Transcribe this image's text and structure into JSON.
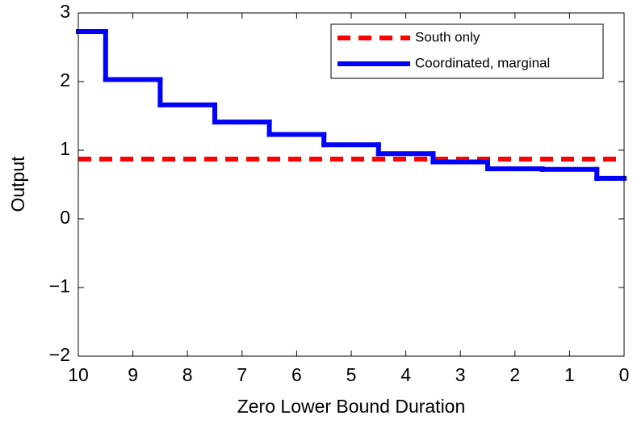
{
  "chart_data": {
    "type": "step-line",
    "x_label": "Zero Lower Bound Duration",
    "y_label": "Output",
    "x": [
      10,
      9,
      8,
      7,
      6,
      5,
      4,
      3,
      2,
      1,
      0
    ],
    "series": [
      {
        "name": "South only",
        "color": "#ff0000",
        "style": "dashed",
        "values": [
          0.87,
          0.87,
          0.87,
          0.87,
          0.87,
          0.87,
          0.87,
          0.87,
          0.87,
          0.87,
          0.87
        ]
      },
      {
        "name": "Coordinated, marginal",
        "color": "#0000ff",
        "style": "steps",
        "values": [
          2.73,
          2.03,
          1.66,
          1.41,
          1.23,
          1.08,
          0.95,
          0.83,
          0.73,
          0.72,
          0.59
        ]
      }
    ],
    "xlim": [
      10,
      0
    ],
    "xticks": [
      10,
      9,
      8,
      7,
      6,
      5,
      4,
      3,
      2,
      1,
      0
    ],
    "ylim": [
      -2,
      3
    ],
    "yticks": [
      {
        "value": -2,
        "label": "−2"
      },
      {
        "value": -1,
        "label": "−1"
      },
      0,
      1,
      2,
      3
    ],
    "legend_position": "upper-right",
    "grid": false
  }
}
